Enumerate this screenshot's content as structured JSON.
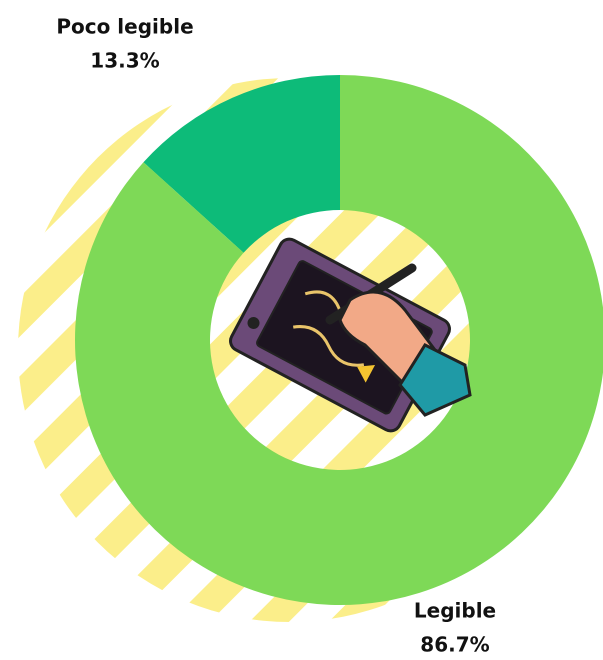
{
  "chart_data": {
    "type": "donut",
    "categories": [
      "Poco legible",
      "Legible"
    ],
    "values": [
      13.3,
      86.7
    ],
    "value_labels": [
      "13.3%",
      "86.7%"
    ],
    "colors": [
      "#0dbb79",
      "#7ed957"
    ]
  }
}
